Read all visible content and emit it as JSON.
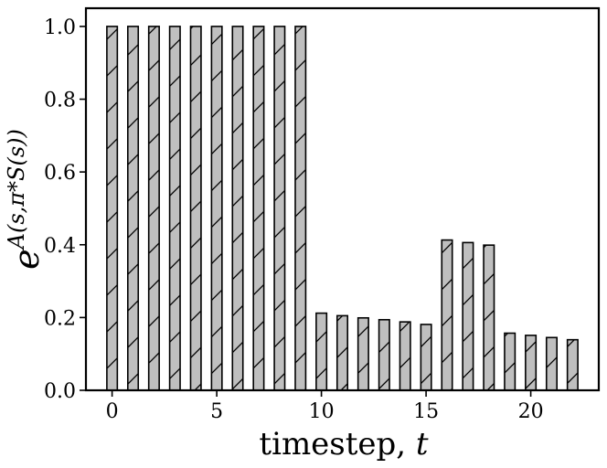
{
  "chart_data": {
    "type": "bar",
    "x": [
      0,
      1,
      2,
      3,
      4,
      5,
      6,
      7,
      8,
      9,
      10,
      11,
      12,
      13,
      14,
      15,
      16,
      17,
      18,
      19,
      20,
      21,
      22
    ],
    "values": [
      1.0,
      1.0,
      1.0,
      1.0,
      1.0,
      1.0,
      1.0,
      1.0,
      1.0,
      1.0,
      0.212,
      0.205,
      0.199,
      0.194,
      0.188,
      0.181,
      0.413,
      0.406,
      0.399,
      0.157,
      0.151,
      0.145,
      0.139
    ],
    "xticks": [
      0,
      5,
      10,
      15,
      20
    ],
    "yticks": [
      0.0,
      0.2,
      0.4,
      0.6,
      0.8,
      1.0
    ],
    "xtick_labels": [
      "0",
      "5",
      "10",
      "15",
      "20"
    ],
    "ytick_labels": [
      "0.0",
      "0.2",
      "0.4",
      "0.6",
      "0.8",
      "1.0"
    ],
    "xlim": [
      -1.25,
      23.25
    ],
    "ylim": [
      0.0,
      1.05
    ],
    "xlabel_text": "timestep, ",
    "xlabel_var": "t",
    "ylabel_base": "e",
    "ylabel_exponent": "A(s,π*S(s))",
    "bar_color": "#bfbfbf",
    "edge_color": "#000000",
    "hatch": "/",
    "grid": false,
    "legend": "none"
  }
}
